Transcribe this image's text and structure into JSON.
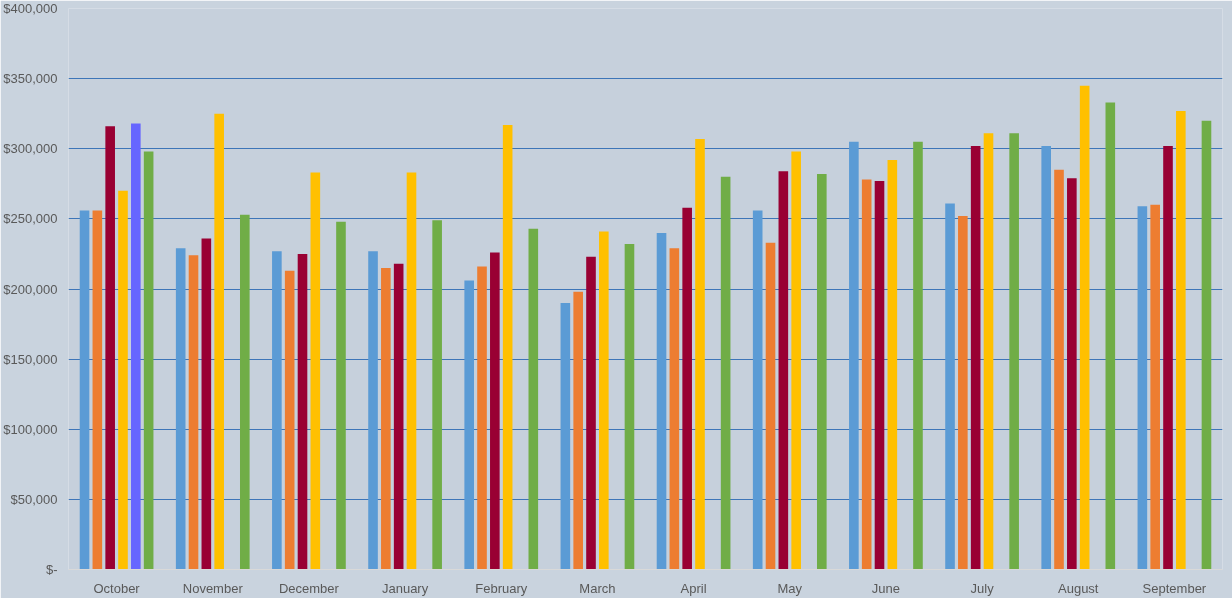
{
  "chart_data": {
    "type": "bar",
    "categories": [
      "October",
      "November",
      "December",
      "January",
      "February",
      "March",
      "April",
      "May",
      "June",
      "July",
      "August",
      "September"
    ],
    "series": [
      {
        "color": "#5b9bd5",
        "values": [
          256000,
          229000,
          227000,
          227000,
          206000,
          190000,
          240000,
          256000,
          305000,
          261000,
          302000,
          259000
        ]
      },
      {
        "color": "#ed7d31",
        "values": [
          256000,
          224000,
          213000,
          215000,
          216000,
          198000,
          229000,
          233000,
          278000,
          252000,
          285000,
          260000
        ]
      },
      {
        "color": "#990033",
        "values": [
          316000,
          236000,
          225000,
          218000,
          226000,
          223000,
          258000,
          284000,
          277000,
          302000,
          279000,
          302000
        ]
      },
      {
        "color": "#ffc000",
        "values": [
          270000,
          325000,
          283000,
          283000,
          317000,
          241000,
          307000,
          298000,
          292000,
          311000,
          345000,
          327000
        ]
      },
      {
        "color": "#6666ff",
        "values": [
          318000,
          null,
          null,
          null,
          null,
          null,
          null,
          null,
          null,
          null,
          null,
          null
        ]
      },
      {
        "color": "#70ad47",
        "values": [
          298000,
          253000,
          248000,
          249000,
          243000,
          232000,
          280000,
          282000,
          305000,
          311000,
          333000,
          320000
        ]
      }
    ],
    "ylim": [
      0,
      400000
    ],
    "yticks": [
      {
        "value": 0,
        "label": "$-"
      },
      {
        "value": 50000,
        "label": "$50,000"
      },
      {
        "value": 100000,
        "label": "$100,000"
      },
      {
        "value": 150000,
        "label": "$150,000"
      },
      {
        "value": 200000,
        "label": "$200,000"
      },
      {
        "value": 250000,
        "label": "$250,000"
      },
      {
        "value": 300000,
        "label": "$300,000"
      },
      {
        "value": 350000,
        "label": "$350,000"
      },
      {
        "value": 400000,
        "label": "$400,000"
      }
    ],
    "grid": "y"
  }
}
